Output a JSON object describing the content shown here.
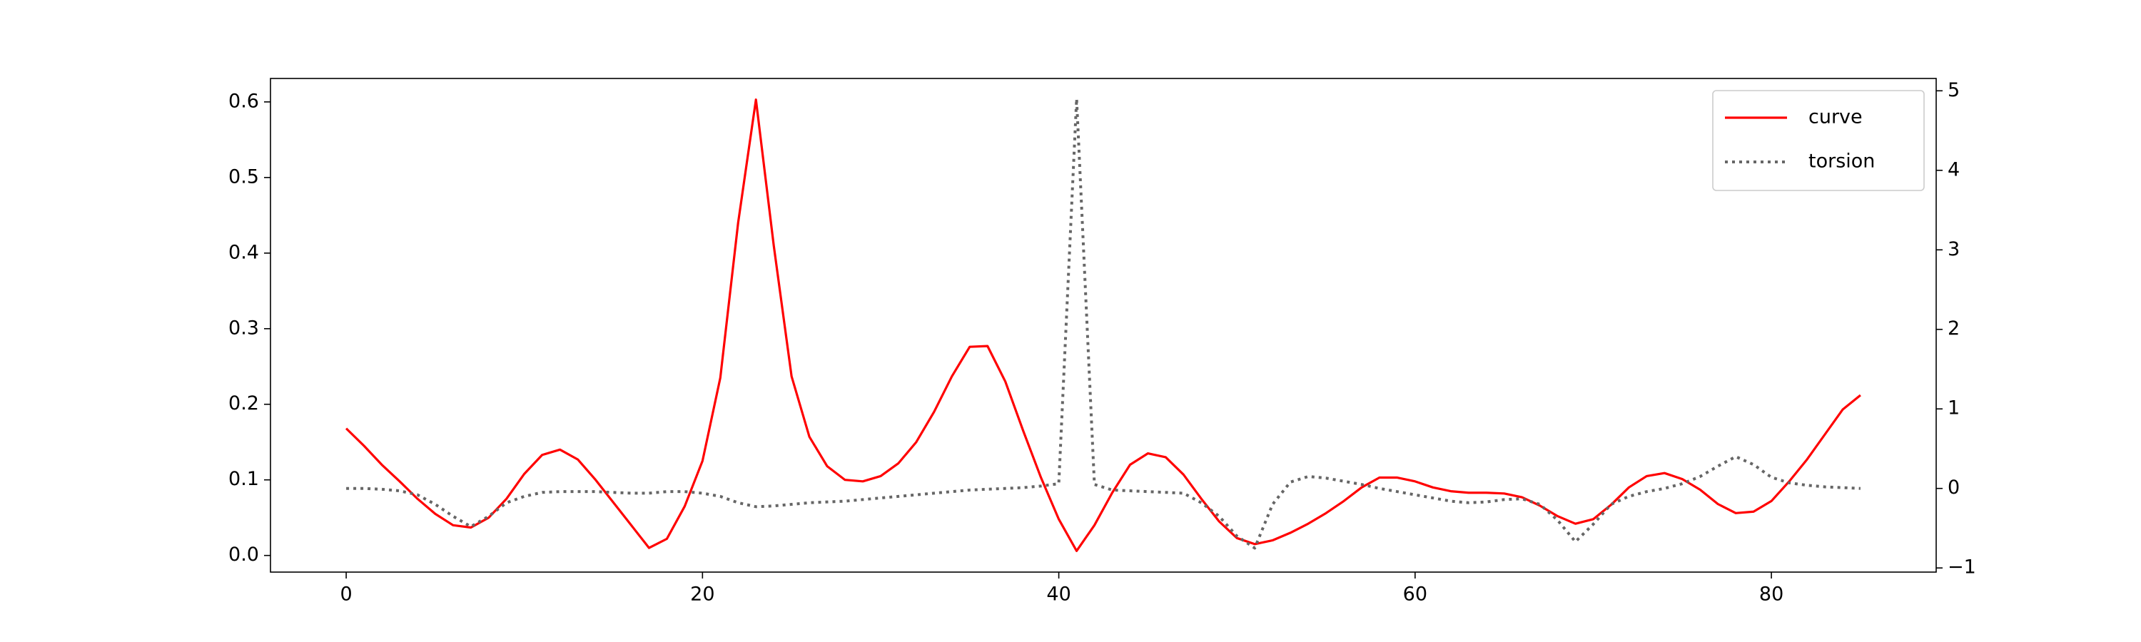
{
  "chart_data": {
    "type": "line",
    "x": [
      0,
      1,
      2,
      3,
      4,
      5,
      6,
      7,
      8,
      9,
      10,
      11,
      12,
      13,
      14,
      15,
      16,
      17,
      18,
      19,
      20,
      21,
      22,
      23,
      24,
      25,
      26,
      27,
      28,
      29,
      30,
      31,
      32,
      33,
      34,
      35,
      36,
      37,
      38,
      39,
      40,
      41,
      42,
      43,
      44,
      45,
      46,
      47,
      48,
      49,
      50,
      51,
      52,
      53,
      54,
      55,
      56,
      57,
      58,
      59,
      60,
      61,
      62,
      63,
      64,
      65,
      66,
      67,
      68,
      69,
      70,
      71,
      72,
      73,
      74,
      75,
      76,
      77,
      78,
      79,
      80,
      81,
      82,
      83,
      84,
      85
    ],
    "series": [
      {
        "name": "curve",
        "color": "#ff0000",
        "linestyle": "solid",
        "axis": "y",
        "values": [
          0.168,
          0.145,
          0.12,
          0.098,
          0.075,
          0.055,
          0.04,
          0.037,
          0.05,
          0.075,
          0.108,
          0.133,
          0.14,
          0.127,
          0.1,
          0.07,
          0.04,
          0.01,
          0.022,
          0.065,
          0.125,
          0.235,
          0.44,
          0.603,
          0.41,
          0.237,
          0.157,
          0.118,
          0.1,
          0.098,
          0.105,
          0.122,
          0.15,
          0.19,
          0.237,
          0.276,
          0.277,
          0.23,
          0.165,
          0.103,
          0.048,
          0.006,
          0.04,
          0.083,
          0.12,
          0.135,
          0.13,
          0.107,
          0.075,
          0.045,
          0.023,
          0.015,
          0.02,
          0.03,
          0.042,
          0.056,
          0.072,
          0.09,
          0.103,
          0.103,
          0.098,
          0.09,
          0.085,
          0.083,
          0.083,
          0.082,
          0.077,
          0.066,
          0.052,
          0.042,
          0.048,
          0.067,
          0.09,
          0.105,
          0.109,
          0.101,
          0.087,
          0.068,
          0.056,
          0.058,
          0.072,
          0.098,
          0.127,
          0.16,
          0.193,
          0.212
        ]
      },
      {
        "name": "torsion",
        "color": "#666666",
        "linestyle": "dotted",
        "axis": "y2",
        "values": [
          0.0,
          0.0,
          -0.01,
          -0.03,
          -0.08,
          -0.2,
          -0.35,
          -0.48,
          -0.35,
          -0.18,
          -0.1,
          -0.05,
          -0.04,
          -0.04,
          -0.04,
          -0.05,
          -0.06,
          -0.06,
          -0.04,
          -0.04,
          -0.06,
          -0.1,
          -0.18,
          -0.23,
          -0.22,
          -0.2,
          -0.18,
          -0.17,
          -0.16,
          -0.14,
          -0.12,
          -0.1,
          -0.08,
          -0.06,
          -0.04,
          -0.02,
          -0.01,
          0.0,
          0.01,
          0.03,
          0.06,
          4.9,
          0.05,
          -0.02,
          -0.03,
          -0.04,
          -0.05,
          -0.06,
          -0.18,
          -0.35,
          -0.6,
          -0.75,
          -0.2,
          0.08,
          0.15,
          0.13,
          0.09,
          0.05,
          0.0,
          -0.04,
          -0.08,
          -0.12,
          -0.16,
          -0.18,
          -0.17,
          -0.14,
          -0.13,
          -0.2,
          -0.4,
          -0.67,
          -0.45,
          -0.2,
          -0.1,
          -0.04,
          0.0,
          0.06,
          0.15,
          0.28,
          0.4,
          0.3,
          0.14,
          0.07,
          0.04,
          0.02,
          0.01,
          0.0
        ]
      }
    ],
    "xlim": [
      -4.25,
      89.25
    ],
    "ylim": [
      -0.022,
      0.631
    ],
    "y2lim": [
      -1.052,
      5.155
    ],
    "xticks": [
      0,
      20,
      40,
      60,
      80
    ],
    "yticks": [
      {
        "value": 0,
        "label": "0.0"
      },
      0.1,
      0.2,
      0.3,
      0.4,
      0.5,
      0.6
    ],
    "y2ticks": [
      {
        "value": -1,
        "label": "−1"
      },
      0,
      1,
      2,
      3,
      4,
      5
    ],
    "legend": "upper right"
  }
}
